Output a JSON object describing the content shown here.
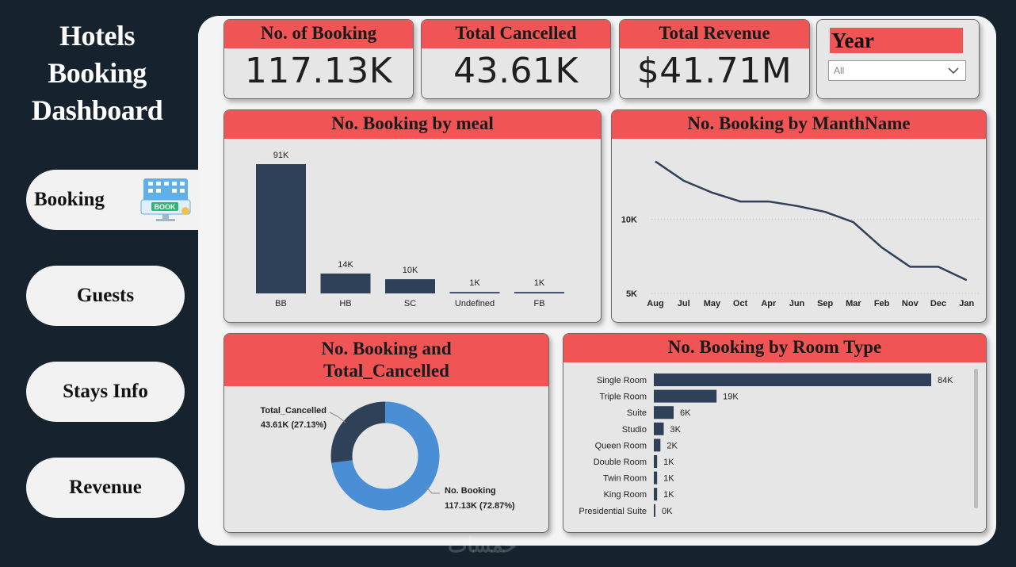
{
  "sidebar": {
    "title_lines": [
      "Hotels",
      "Booking",
      "Dashboard"
    ],
    "nav": [
      {
        "label": "Booking",
        "active": true
      },
      {
        "label": "Guests"
      },
      {
        "label": "Stays Info"
      },
      {
        "label": "Revenue"
      }
    ],
    "booking_icon_label": "BOOK"
  },
  "kpis": [
    {
      "title": "No. of Booking",
      "value": "117.13K"
    },
    {
      "title": "Total Cancelled",
      "value": "43.61K"
    },
    {
      "title": "Total Revenue",
      "value": "$41.71M"
    }
  ],
  "slicer": {
    "title": "Year",
    "selected": "All"
  },
  "colors": {
    "accent": "#f05455",
    "bar": "#2e4159",
    "donut_primary": "#4a8fd6",
    "donut_secondary": "#2e4159"
  },
  "chart_data": [
    {
      "id": "meal",
      "type": "bar",
      "title": "No. Booking by meal",
      "categories": [
        "BB",
        "HB",
        "SC",
        "Undefined",
        "FB"
      ],
      "values": [
        91,
        14,
        10,
        1,
        1
      ],
      "labels": [
        "91K",
        "14K",
        "10K",
        "1K",
        "1K"
      ],
      "ylim": [
        0,
        91
      ]
    },
    {
      "id": "month",
      "type": "line",
      "title": "No. Booking by ManthName",
      "categories": [
        "Aug",
        "Jul",
        "May",
        "Oct",
        "Apr",
        "Jun",
        "Sep",
        "Mar",
        "Feb",
        "Nov",
        "Dec",
        "Jan"
      ],
      "values": [
        13.9,
        12.6,
        11.8,
        11.2,
        11.2,
        10.9,
        10.5,
        9.8,
        8.1,
        6.8,
        6.8,
        5.9
      ],
      "yticks": [
        {
          "value": 10,
          "label": "10K"
        },
        {
          "value": 5,
          "label": "5K"
        }
      ],
      "ylim": [
        4.2,
        15
      ]
    },
    {
      "id": "donut",
      "type": "pie",
      "title_lines": [
        "No. Booking and",
        "Total_Cancelled"
      ],
      "slices": [
        {
          "name": "No. Booking",
          "value": 117.13,
          "label": "117.13K (72.87%)"
        },
        {
          "name": "Total_Cancelled",
          "value": 43.61,
          "label": "43.61K (27.13%)"
        }
      ]
    },
    {
      "id": "room",
      "type": "bar",
      "orientation": "horizontal",
      "title": "No. Booking by Room Type",
      "categories": [
        "Single Room",
        "Triple Room",
        "Suite",
        "Studio",
        "Queen Room",
        "Double Room",
        "Twin Room",
        "King Room",
        "Presidential Suite"
      ],
      "values": [
        84,
        19,
        6,
        3,
        2,
        1,
        1,
        1,
        0
      ],
      "labels": [
        "84K",
        "19K",
        "6K",
        "3K",
        "2K",
        "1K",
        "1K",
        "1K",
        "0K"
      ],
      "xlim": [
        0,
        84
      ]
    }
  ]
}
